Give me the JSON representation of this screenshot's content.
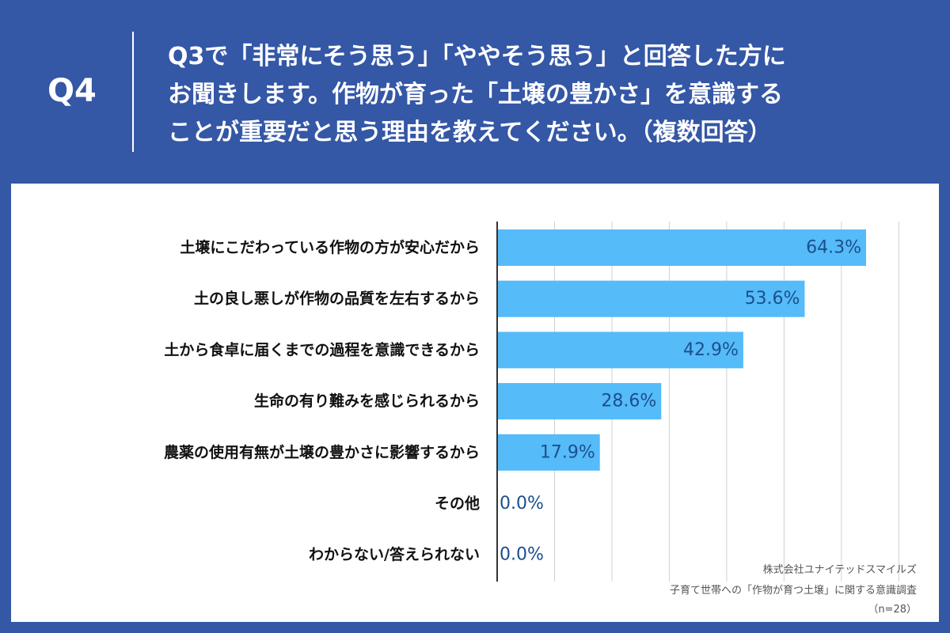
{
  "question_number": "Q4",
  "question_lines": [
    "Q3で「非常にそう思う」「ややそう思う」と回答した方に",
    "お聞きします。作物が育った「土壌の豊かさ」を意識する",
    "ことが重要だと思う理由を教えてください。（複数回答）"
  ],
  "source": {
    "company": "株式会社ユナイテッドスマイルズ",
    "survey": "子育て世帯への「作物が育つ土壌」に関する意識調査",
    "sample": "（n=28）"
  },
  "chart_data": {
    "type": "bar",
    "orientation": "horizontal",
    "categories": [
      "土壌にこだわっている作物の方が安心だから",
      "土の良し悪しが作物の品質を左右するから",
      "土から食卓に届くまでの過程を意識できるから",
      "生命の有り難みを感じられるから",
      "農薬の使用有無が土壌の豊かさに影響するから",
      "その他",
      "わからない/答えられない"
    ],
    "values": [
      64.3,
      53.6,
      42.9,
      28.6,
      17.9,
      0.0,
      0.0
    ],
    "value_labels": [
      "64.3%",
      "53.6%",
      "42.9%",
      "28.6%",
      "17.9%",
      "0.0%",
      "0.0%"
    ],
    "xlim": [
      0,
      70
    ],
    "grid": true,
    "bar_color": "#55bbf9",
    "label_color": "#1c4f8c",
    "grid_color": "#d0d0d0",
    "axis_color": "#333333"
  }
}
